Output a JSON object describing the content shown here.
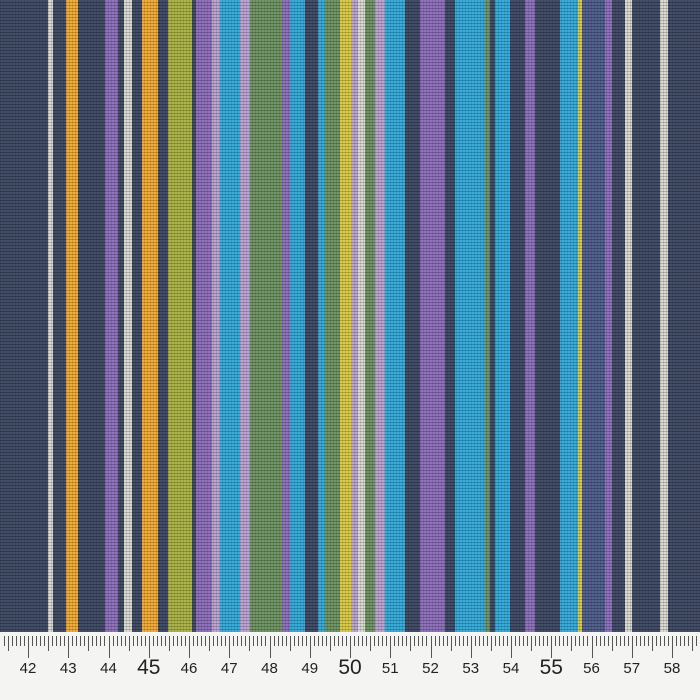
{
  "fabric": {
    "stripe_colors": {
      "navy": "#3a4560",
      "white": "#d8d8d0",
      "orange": "#f0a830",
      "purple": "#8a6cb8",
      "lavender": "#b8a0d0",
      "olive": "#a8b040",
      "cyan": "#30a8d8",
      "green": "#6a9060",
      "yellow": "#d8c840",
      "blue": "#4a5a88"
    }
  },
  "ruler": {
    "labels": [
      "42",
      "43",
      "44",
      "45",
      "46",
      "47",
      "48",
      "49",
      "50",
      "51",
      "52",
      "53",
      "54",
      "55",
      "56",
      "57",
      "58"
    ],
    "major_labels": [
      "45",
      "50",
      "55"
    ]
  }
}
